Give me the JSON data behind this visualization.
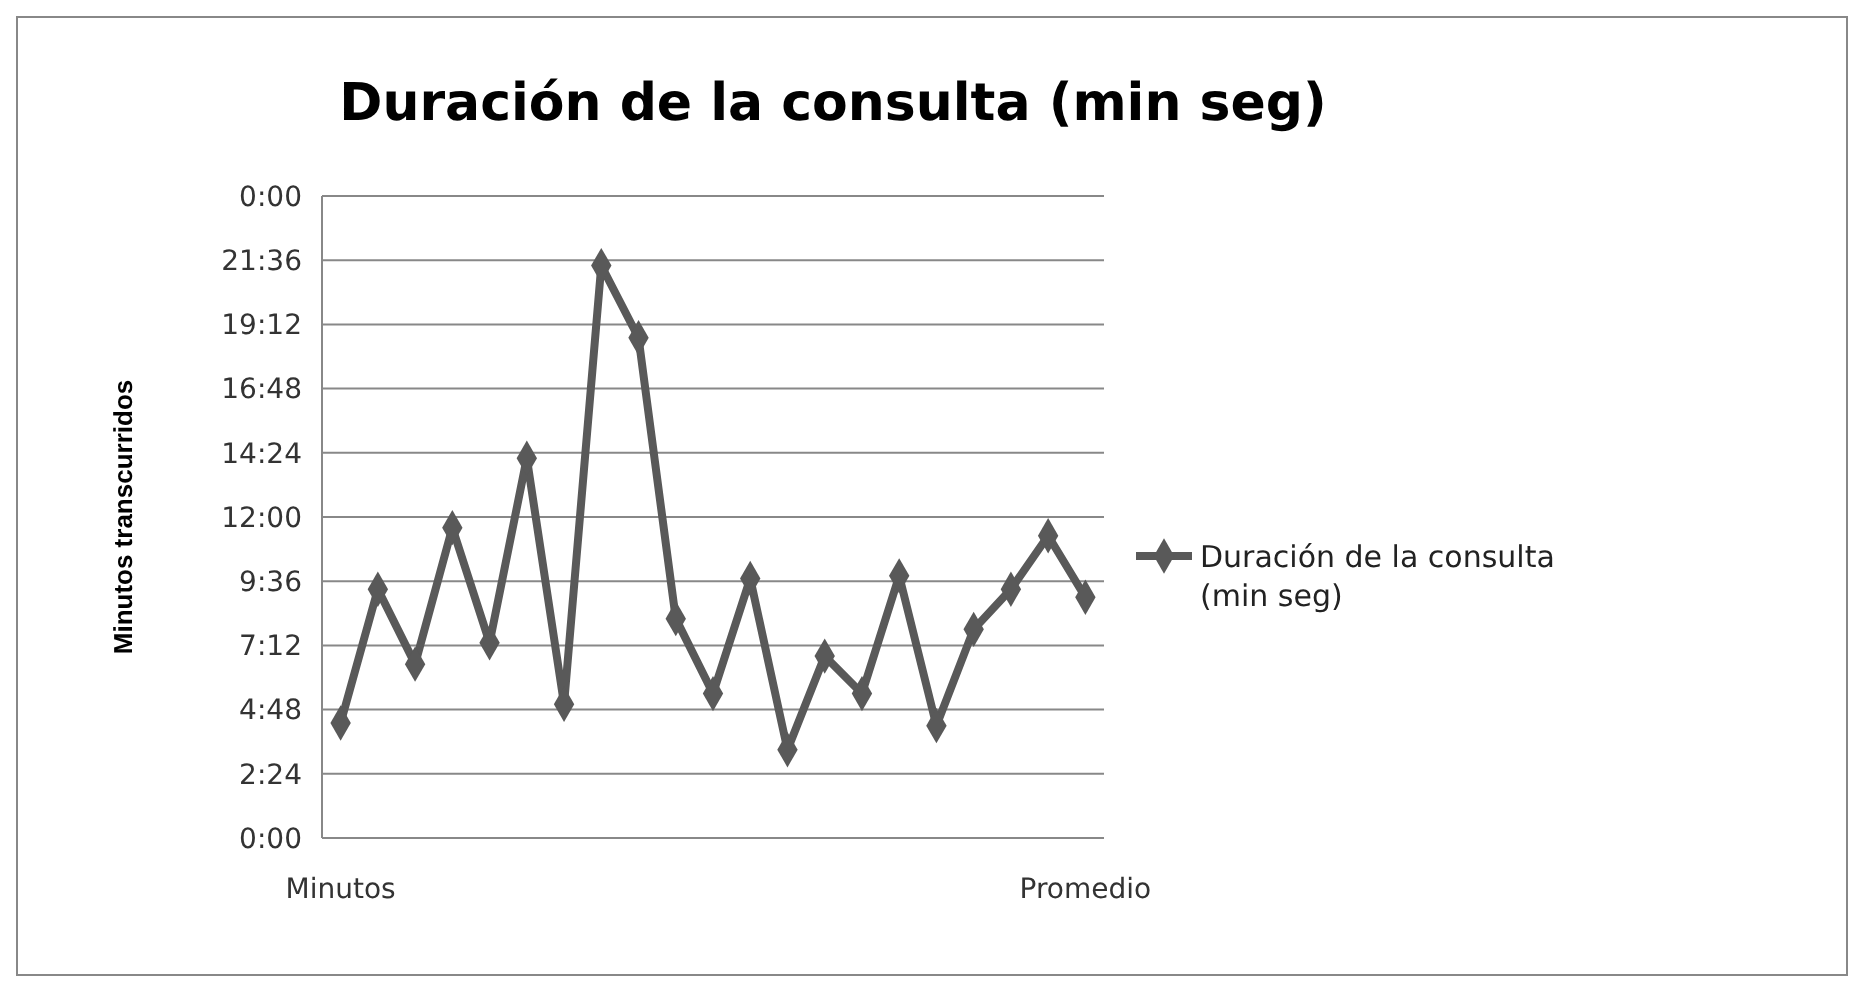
{
  "chart_data": {
    "type": "line",
    "title": "Duración de la consulta (min seg)",
    "ylabel": "Minutos transcurridos",
    "categories": [
      "Minutos",
      null,
      null,
      null,
      null,
      null,
      null,
      null,
      null,
      null,
      null,
      null,
      null,
      null,
      null,
      null,
      null,
      null,
      null,
      null,
      "Promedio"
    ],
    "series": [
      {
        "name": "Duración de la consulta (min seg)",
        "color": "#595959",
        "values": [
          4.3,
          9.3,
          6.5,
          11.6,
          7.3,
          14.2,
          5.0,
          21.4,
          18.7,
          8.2,
          5.4,
          9.7,
          3.3,
          6.8,
          5.4,
          9.8,
          4.2,
          7.8,
          9.3,
          11.3,
          9.0
        ]
      }
    ],
    "ylim": [
      0,
      24
    ],
    "yticks": [
      {
        "value": 0,
        "label": "0:00"
      },
      {
        "value": 2.4,
        "label": "2:24"
      },
      {
        "value": 4.8,
        "label": "4:48"
      },
      {
        "value": 7.2,
        "label": "7:12"
      },
      {
        "value": 9.6,
        "label": "9:36"
      },
      {
        "value": 12,
        "label": "12:00"
      },
      {
        "value": 14.4,
        "label": "14:24"
      },
      {
        "value": 16.8,
        "label": "16:48"
      },
      {
        "value": 19.2,
        "label": "19:12"
      },
      {
        "value": 21.6,
        "label": "21:36"
      },
      {
        "value": 24,
        "label": "0:00"
      }
    ],
    "grid": "y",
    "legend": "right",
    "marker": "diamond",
    "line_style": "solid"
  }
}
